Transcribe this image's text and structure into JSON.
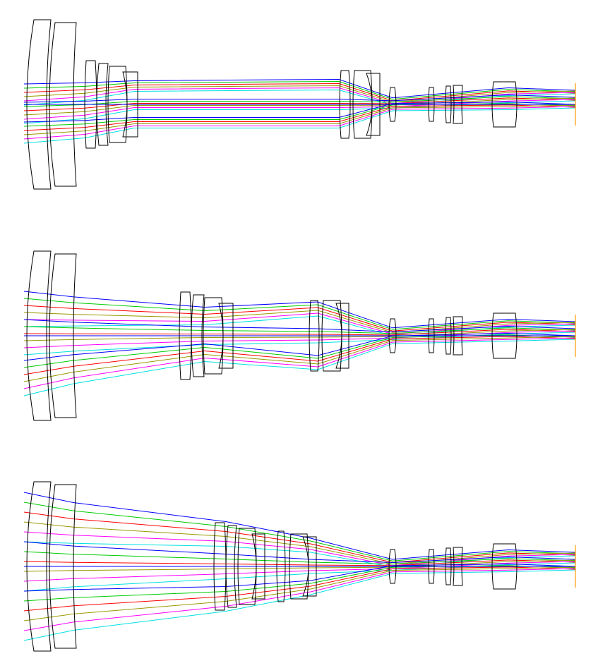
{
  "diagram": {
    "type": "zoom-lens-layout",
    "zoom_positions": [
      "wide",
      "middle",
      "tele"
    ],
    "ray_colors": {
      "blue": "#0000ff",
      "green": "#00cc00",
      "red": "#ff0000",
      "olive": "#999900",
      "magenta": "#ff00ff",
      "cyan": "#00e0e0"
    },
    "lens_color": "#000000",
    "image_plane_color": "#ff9900"
  }
}
